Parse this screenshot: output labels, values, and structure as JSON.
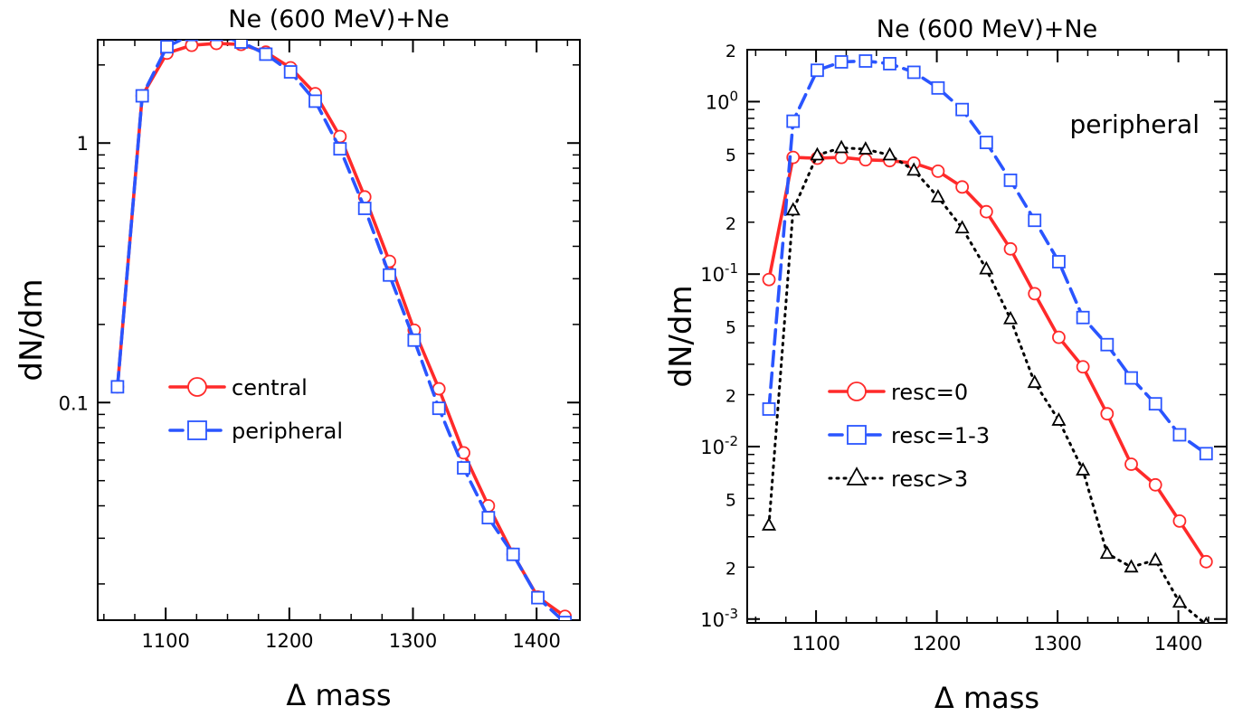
{
  "figure": {
    "background": "#ffffff"
  },
  "styles": {
    "central": {
      "color": "#ff2a2a",
      "marker": "circle",
      "dash": "solid"
    },
    "peripheral": {
      "color": "#2a55ff",
      "marker": "square",
      "dash": "dashed"
    },
    "resc0": {
      "color": "#ff2a2a",
      "marker": "circle",
      "dash": "solid"
    },
    "resc13": {
      "color": "#2a55ff",
      "marker": "square",
      "dash": "dashed"
    },
    "resc3": {
      "color": "#000000",
      "marker": "triangle",
      "dash": "dotted"
    }
  },
  "chart_data": [
    {
      "type": "line",
      "title": "Ne (600 MeV)+Ne",
      "xlabel": "Δ  mass",
      "ylabel": "dN/dm",
      "xscale": "linear",
      "yscale": "log",
      "xlim": [
        1045,
        1435
      ],
      "ylim": [
        0.0145,
        2.5
      ],
      "xticks": [
        1100,
        1200,
        1300,
        1400
      ],
      "xticklabels": [
        "1100",
        "1200",
        "1300",
        "1400"
      ],
      "yticks": [
        0.1,
        1
      ],
      "yticklabels": [
        "0.1",
        "1"
      ],
      "legend_position": "center-left",
      "series": [
        {
          "name": "central",
          "style": "central",
          "x": [
            1061,
            1081,
            1101,
            1121,
            1141,
            1161,
            1181,
            1201,
            1221,
            1241,
            1261,
            1281,
            1301,
            1321,
            1341,
            1361,
            1381,
            1401,
            1423
          ],
          "y": [
            0.115,
            1.52,
            2.22,
            2.38,
            2.42,
            2.4,
            2.24,
            1.95,
            1.55,
            1.06,
            0.62,
            0.35,
            0.19,
            0.113,
            0.064,
            0.04,
            0.026,
            0.0178,
            0.015
          ]
        },
        {
          "name": "peripheral",
          "style": "peripheral",
          "x": [
            1061,
            1081,
            1101,
            1121,
            1141,
            1161,
            1181,
            1201,
            1221,
            1241,
            1261,
            1281,
            1301,
            1321,
            1341,
            1361,
            1381,
            1401,
            1423
          ],
          "y": [
            0.115,
            1.52,
            2.35,
            2.62,
            2.62,
            2.45,
            2.2,
            1.88,
            1.45,
            0.95,
            0.56,
            0.31,
            0.174,
            0.095,
            0.056,
            0.036,
            0.026,
            0.0177,
            0.0142
          ]
        }
      ]
    },
    {
      "type": "line",
      "title": "Ne (600 MeV)+Ne",
      "xlabel": "Δ  mass",
      "ylabel": "dN/dm",
      "xscale": "linear",
      "yscale": "log",
      "xlim": [
        1043,
        1440
      ],
      "ylim": [
        0.00095,
        2.0
      ],
      "xticks": [
        1100,
        1200,
        1300,
        1400
      ],
      "xticklabels": [
        "1100",
        "1200",
        "1300",
        "1400"
      ],
      "annotation": "peripheral",
      "legend_position": "lower-left",
      "series": [
        {
          "name": "resc=0",
          "style": "resc0",
          "x": [
            1061,
            1081,
            1101,
            1121,
            1141,
            1161,
            1181,
            1201,
            1221,
            1241,
            1261,
            1281,
            1301,
            1321,
            1341,
            1361,
            1381,
            1401,
            1423
          ],
          "y": [
            0.093,
            0.475,
            0.47,
            0.475,
            0.46,
            0.455,
            0.44,
            0.395,
            0.32,
            0.23,
            0.14,
            0.077,
            0.043,
            0.029,
            0.0155,
            0.0079,
            0.006,
            0.0037,
            0.00215
          ]
        },
        {
          "name": "resc=1-3",
          "style": "resc13",
          "x": [
            1061,
            1081,
            1101,
            1121,
            1141,
            1161,
            1181,
            1201,
            1221,
            1241,
            1261,
            1281,
            1301,
            1321,
            1341,
            1361,
            1381,
            1401,
            1423
          ],
          "y": [
            0.0165,
            0.77,
            1.52,
            1.7,
            1.72,
            1.66,
            1.48,
            1.2,
            0.9,
            0.58,
            0.35,
            0.205,
            0.118,
            0.056,
            0.039,
            0.025,
            0.0177,
            0.0117,
            0.0091
          ]
        },
        {
          "name": "resc>3",
          "style": "resc3",
          "x": [
            1061,
            1081,
            1101,
            1121,
            1141,
            1161,
            1181,
            1201,
            1221,
            1241,
            1261,
            1281,
            1301,
            1321,
            1341,
            1361,
            1381,
            1401,
            1423
          ],
          "y": [
            0.0035,
            0.235,
            0.49,
            0.54,
            0.53,
            0.49,
            0.4,
            0.28,
            0.185,
            0.107,
            0.055,
            0.0235,
            0.0142,
            0.0073,
            0.0024,
            0.002,
            0.0022,
            0.00125,
            0.00093
          ]
        }
      ]
    }
  ]
}
